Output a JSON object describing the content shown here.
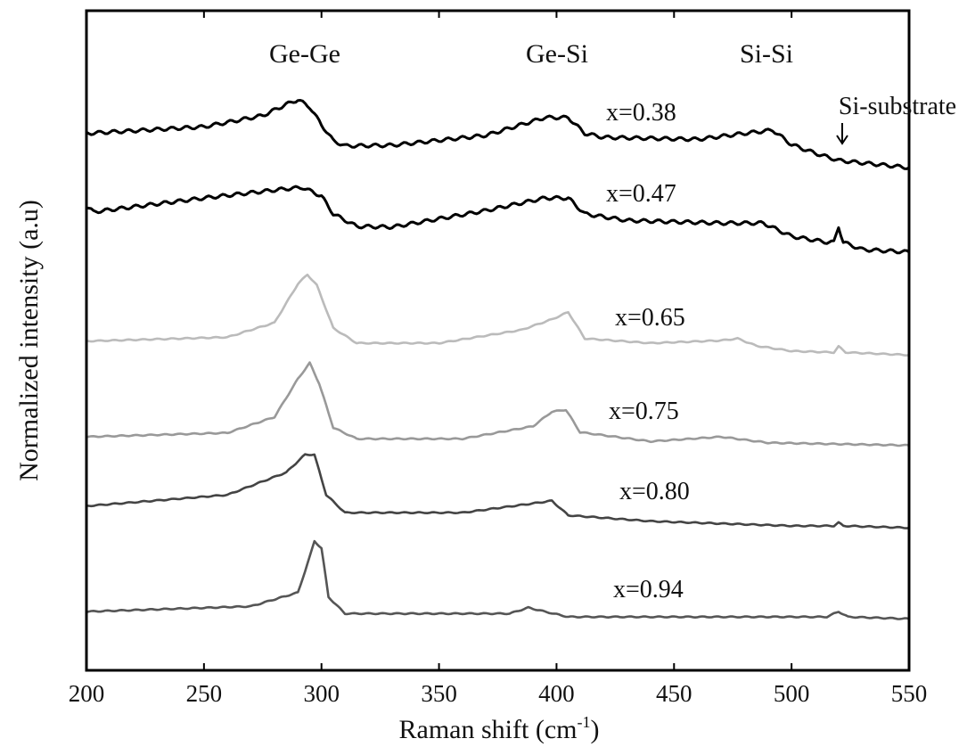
{
  "chart_data": {
    "type": "line",
    "title": "",
    "xlabel": "Raman shift (cm",
    "xlabel_sup": "-1",
    "xlabel_close": ")",
    "ylabel": "Normalized intensity (a.u)",
    "xlim": [
      200,
      550
    ],
    "ylim": [
      0,
      100
    ],
    "xticks": [
      200,
      250,
      300,
      350,
      400,
      450,
      500,
      550
    ],
    "y_ticks_labeled": false,
    "grid": false,
    "peak_labels": [
      "Ge-Ge",
      "Ge-Si",
      "Si-Si",
      "Si-substrate"
    ],
    "series": [
      {
        "name": "x=0.38",
        "color": "#000000",
        "x": [
          200,
          250,
          275,
          285,
          290,
          295,
          300,
          305,
          310,
          330,
          370,
          395,
          405,
          412,
          420,
          460,
          480,
          492,
          500,
          510,
          520,
          550
        ],
        "y": [
          81.4,
          82.4,
          84.1,
          85.8,
          86.5,
          85.4,
          82.7,
          80.3,
          79.5,
          79.6,
          81.1,
          83.8,
          83.8,
          81.4,
          80.8,
          80.5,
          81.4,
          81.9,
          79.7,
          78.4,
          77.3,
          76.2
        ]
      },
      {
        "name": "x=0.47",
        "color": "#000000",
        "x": [
          200,
          203,
          250,
          285,
          292,
          300,
          305,
          315,
          330,
          370,
          395,
          405,
          412,
          430,
          470,
          488,
          500,
          515,
          518,
          520,
          522,
          530,
          550
        ],
        "y": [
          70.3,
          69.5,
          71.6,
          73.0,
          73.2,
          71.9,
          69.2,
          67.3,
          67.2,
          69.7,
          71.6,
          71.6,
          69.2,
          68.2,
          67.8,
          67.8,
          65.8,
          64.9,
          64.9,
          67.3,
          64.9,
          63.8,
          63.4
        ]
      },
      {
        "name": "x=0.65",
        "color": "#bbbbbb",
        "x": [
          200,
          260,
          280,
          290,
          294,
          298,
          305,
          315,
          350,
          385,
          398,
          405,
          412,
          440,
          470,
          477,
          485,
          500,
          518,
          520,
          523,
          550
        ],
        "y": [
          49.9,
          50.5,
          52.7,
          58.6,
          60.0,
          58.4,
          51.9,
          49.6,
          49.6,
          51.6,
          53.2,
          54.3,
          50.3,
          49.6,
          50.0,
          50.3,
          49.2,
          48.4,
          48.2,
          49.1,
          48.2,
          47.8
        ]
      },
      {
        "name": "x=0.75",
        "color": "#999999",
        "x": [
          200,
          260,
          280,
          290,
          295,
          299,
          305,
          315,
          360,
          390,
          398,
          404,
          410,
          440,
          470,
          490,
          550
        ],
        "y": [
          35.4,
          36.0,
          38.4,
          44.2,
          46.6,
          43.5,
          36.8,
          35.1,
          35.1,
          37.0,
          39.2,
          39.5,
          36.1,
          34.7,
          35.4,
          34.5,
          34.1
        ]
      },
      {
        "name": "x=0.80",
        "color": "#444444",
        "x": [
          200,
          260,
          285,
          293,
          297,
          302,
          310,
          360,
          390,
          398,
          405,
          440,
          500,
          518,
          520,
          522,
          550
        ],
        "y": [
          24.9,
          26.6,
          30.0,
          32.7,
          32.7,
          26.6,
          23.9,
          23.9,
          25.3,
          25.7,
          23.5,
          22.6,
          21.9,
          21.9,
          22.4,
          21.9,
          21.6
        ]
      },
      {
        "name": "x=0.94",
        "color": "#555555",
        "x": [
          200,
          270,
          290,
          295,
          297,
          300,
          303,
          310,
          380,
          388,
          395,
          405,
          515,
          520,
          524,
          550
        ],
        "y": [
          8.9,
          9.7,
          11.8,
          17.2,
          19.6,
          18.5,
          11.1,
          8.6,
          8.6,
          9.5,
          8.9,
          8.1,
          8.1,
          8.9,
          8.1,
          7.8
        ]
      }
    ]
  }
}
